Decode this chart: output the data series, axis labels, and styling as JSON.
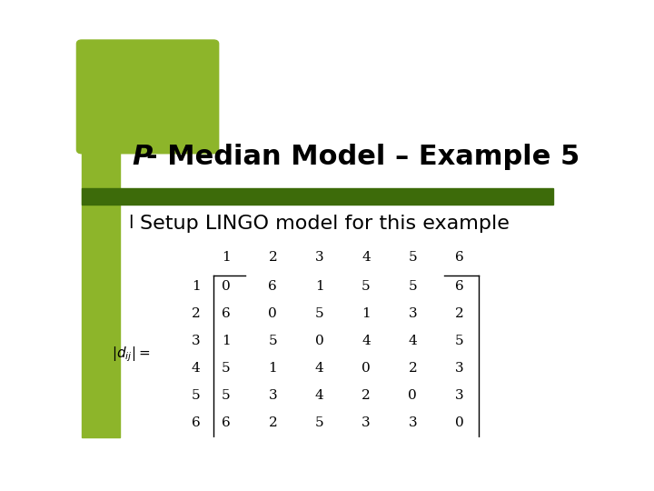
{
  "title_italic": "P",
  "title_rest": "- Median Model – Example 5",
  "bullet": "Setup LINGO model for this example",
  "matrix": [
    [
      0,
      6,
      1,
      5,
      5,
      6
    ],
    [
      6,
      0,
      5,
      1,
      3,
      2
    ],
    [
      1,
      5,
      0,
      4,
      4,
      5
    ],
    [
      5,
      1,
      4,
      0,
      2,
      3
    ],
    [
      5,
      3,
      4,
      2,
      0,
      3
    ],
    [
      6,
      2,
      5,
      3,
      3,
      0
    ]
  ],
  "col_labels": [
    "1",
    "2",
    "3",
    "4",
    "5",
    "6"
  ],
  "row_labels": [
    "1",
    "2",
    "3",
    "4",
    "5",
    "6"
  ],
  "bg_color": "#ffffff",
  "left_bar_color": "#8db52a",
  "header_bar_color": "#3d6b0a",
  "title_fontsize": 22,
  "bullet_fontsize": 16,
  "matrix_fontsize": 11,
  "label_fontsize": 11
}
